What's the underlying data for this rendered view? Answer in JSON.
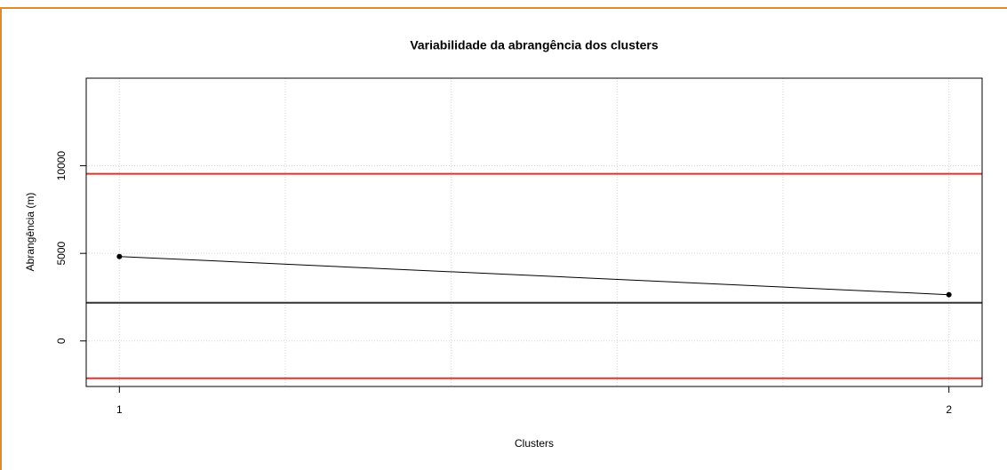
{
  "chart_data": {
    "type": "line",
    "title": "Variabilidade da abrangência dos clusters",
    "x_label": "Clusters",
    "y_label": "Abrangência (m)",
    "x": [
      1,
      2
    ],
    "series": [
      {
        "color": "#000000",
        "values": [
          4820,
          2640
        ]
      }
    ],
    "hlines": [
      {
        "value": 9540,
        "color": "#e8302a"
      },
      {
        "value": 2180,
        "color": "#333333"
      },
      {
        "value": -2130,
        "color": "#e8302a"
      }
    ],
    "xlim": [
      0.96,
      2.04
    ],
    "xticks": [
      1,
      2
    ],
    "xgrid": [
      1,
      1.2,
      1.4,
      1.6,
      1.8,
      2
    ],
    "ylim": [
      -2600,
      15000
    ],
    "yticks": [
      0,
      5000,
      10000
    ],
    "grid": true
  }
}
